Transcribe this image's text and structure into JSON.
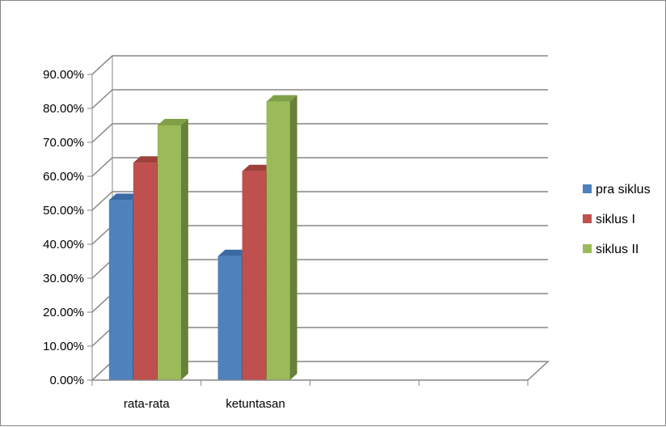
{
  "chart_data": {
    "type": "bar",
    "title": "",
    "xlabel": "",
    "ylabel": "",
    "categories": [
      "rata-rata",
      "ketuntasan"
    ],
    "series": [
      {
        "name": "pra siklus",
        "values": [
          53.0,
          36.5
        ],
        "color": "#4f81bd",
        "side": "#2e5689",
        "top": "#3a6aa3"
      },
      {
        "name": "siklus I",
        "values": [
          64.0,
          61.5
        ],
        "color": "#c0504d",
        "side": "#8a3432",
        "top": "#a0403d"
      },
      {
        "name": "siklus II",
        "values": [
          75.0,
          82.0
        ],
        "color": "#9bbb59",
        "side": "#67803a",
        "top": "#80a048"
      }
    ],
    "ylim": [
      0,
      90
    ],
    "y_ticks": [
      "0.00%",
      "10.00%",
      "20.00%",
      "30.00%",
      "40.00%",
      "50.00%",
      "60.00%",
      "70.00%",
      "80.00%",
      "90.00%"
    ],
    "empty_category_slots": 2,
    "grid": true,
    "legend": "right"
  }
}
